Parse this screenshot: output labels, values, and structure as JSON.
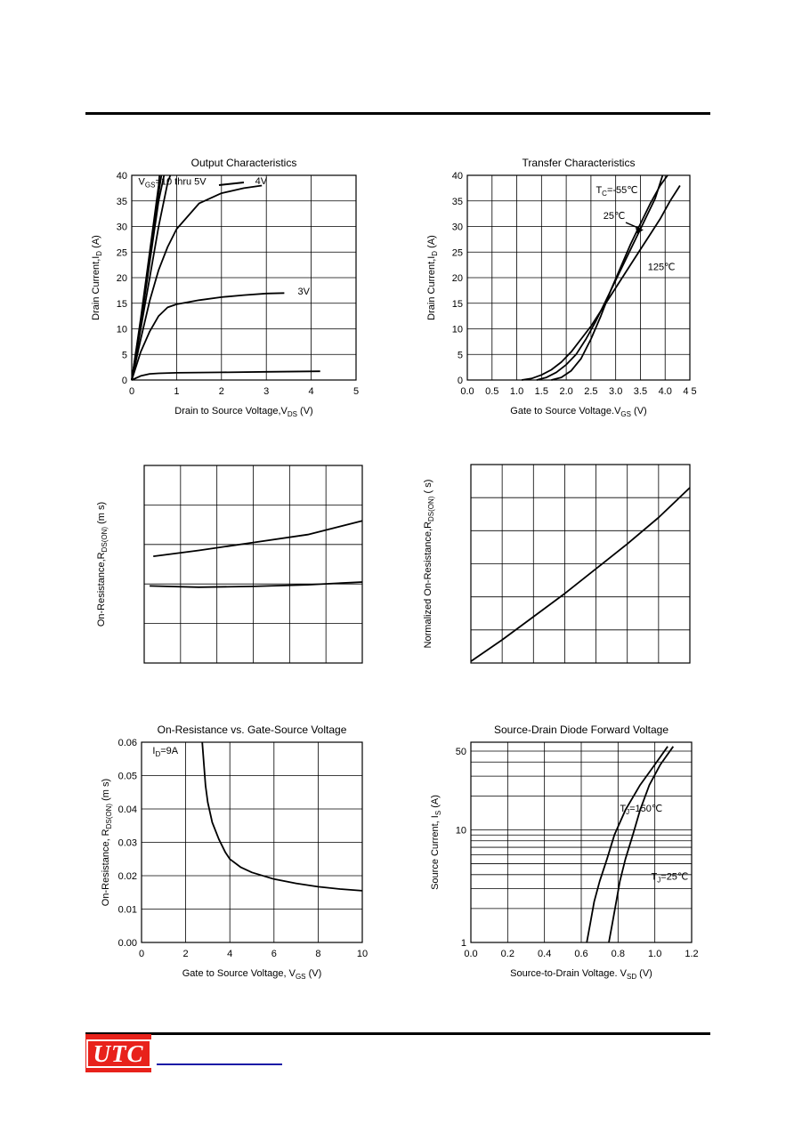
{
  "logo": {
    "text": "UTC"
  },
  "colors": {
    "rule": "#000000",
    "logo_bg": "#e8221b",
    "link": "#1a1aa6"
  },
  "chart_data": [
    {
      "type": "line",
      "title": "Output Characteristics",
      "xlabel": "Drain to Source Voltage,V",
      "xlabel_sub": "DS",
      "xlabel_unit": " (V)",
      "ylabel": "Drain Current,I",
      "ylabel_sub": "D",
      "ylabel_unit": " (A)",
      "xlim": [
        0,
        5
      ],
      "ylim": [
        0,
        40
      ],
      "xticks": [
        0,
        1,
        2,
        3,
        4,
        5
      ],
      "yticks": [
        0,
        5,
        10,
        15,
        20,
        25,
        30,
        35,
        40
      ],
      "grid": true,
      "annotations": [
        {
          "text": "V",
          "sub": "GS",
          "rest": "=10 thru 5V",
          "x": 0.15,
          "y": 38.2
        },
        {
          "text": "4V",
          "x": 2.75,
          "y": 38.3
        },
        {
          "text": "3V",
          "x": 3.7,
          "y": 16.7
        }
      ],
      "series": [
        {
          "x": [
            0,
            0.2,
            0.4,
            0.6,
            0.62
          ],
          "y": [
            0,
            12,
            25,
            38,
            40
          ]
        },
        {
          "x": [
            0,
            0.2,
            0.4,
            0.6,
            0.66
          ],
          "y": [
            0,
            11.5,
            24,
            36.5,
            40
          ]
        },
        {
          "x": [
            0,
            0.2,
            0.4,
            0.6,
            0.72
          ],
          "y": [
            0,
            11,
            23,
            35,
            40
          ]
        },
        {
          "x": [
            0,
            0.2,
            0.4,
            0.6,
            0.8,
            0.86
          ],
          "y": [
            0,
            10,
            20,
            30,
            38.5,
            40
          ]
        },
        {
          "x": [
            0,
            0.2,
            0.4,
            0.6,
            0.8,
            1.0,
            1.5,
            2.0,
            2.5,
            2.9
          ],
          "y": [
            0,
            8,
            15.5,
            21.5,
            26,
            29.5,
            34.5,
            36.5,
            37.5,
            38
          ]
        },
        {
          "x": [
            0,
            0.2,
            0.4,
            0.6,
            0.8,
            1.0,
            1.5,
            2.0,
            2.5,
            3.0,
            3.4
          ],
          "y": [
            0,
            5.5,
            9.5,
            12.5,
            14.2,
            14.8,
            15.6,
            16.2,
            16.6,
            16.9,
            17
          ]
        },
        {
          "x": [
            0,
            0.2,
            0.4,
            0.6,
            1.0,
            2.0,
            3.0,
            4.2
          ],
          "y": [
            0,
            0.8,
            1.2,
            1.3,
            1.4,
            1.5,
            1.6,
            1.7
          ]
        }
      ]
    },
    {
      "type": "line",
      "title": "Transfer Characteristics",
      "xlabel": "Gate to Source Voltage.V",
      "xlabel_sub": "GS",
      "xlabel_unit": " (V)",
      "ylabel": "Drain Current,I",
      "ylabel_sub": "D",
      "ylabel_unit": " (A)",
      "xlim": [
        0,
        4.5
      ],
      "ylim": [
        0,
        40
      ],
      "xticks": [
        "0.0",
        "0.5",
        "1.0",
        "1.5",
        "2.0",
        "2.5",
        "3.0",
        "3.5",
        "4.0",
        "4 5"
      ],
      "yticks": [
        0,
        5,
        10,
        15,
        20,
        25,
        30,
        35,
        40
      ],
      "grid": true,
      "annotations": [
        {
          "text": "T",
          "sub": "C",
          "rest": "=-55℃",
          "x": 2.6,
          "y": 36.5
        },
        {
          "text": "25℃",
          "x": 2.75,
          "y": 31.5
        },
        {
          "text": "125℃",
          "x": 3.65,
          "y": 21.5
        }
      ],
      "series": [
        {
          "name": "T_C=-55℃",
          "x": [
            1.7,
            1.9,
            2.1,
            2.3,
            2.5,
            2.7,
            2.9,
            3.1,
            3.3,
            3.5,
            3.7,
            3.9,
            4.05
          ],
          "y": [
            0,
            0.5,
            1.8,
            4.2,
            8,
            12.5,
            17.5,
            22,
            26.5,
            30.5,
            34.5,
            38,
            40
          ]
        },
        {
          "name": "25℃",
          "x": [
            1.4,
            1.6,
            1.8,
            2.0,
            2.2,
            2.4,
            2.6,
            2.8,
            3.0,
            3.2,
            3.4,
            3.6,
            3.8,
            3.95
          ],
          "y": [
            0,
            0.5,
            1.5,
            3,
            5,
            8,
            11.5,
            15.5,
            19.5,
            23.5,
            27.5,
            31.5,
            35.5,
            40
          ]
        },
        {
          "name": "125℃",
          "x": [
            1.1,
            1.3,
            1.5,
            1.7,
            1.9,
            2.1,
            2.3,
            2.5,
            2.7,
            2.9,
            3.1,
            3.3,
            3.5,
            3.7,
            3.9,
            4.1,
            4.3
          ],
          "y": [
            0,
            0.3,
            1,
            2,
            3.5,
            5.5,
            8,
            10.5,
            13.5,
            16.5,
            19.5,
            22.5,
            25.5,
            28.5,
            31.5,
            35,
            38
          ]
        }
      ]
    },
    {
      "type": "line",
      "title": "",
      "xlabel": "",
      "ylabel": "On-Resistance,R",
      "ylabel_sub": "DS(ON)",
      "ylabel_unit": " (m s)",
      "xlim": [
        0,
        6
      ],
      "ylim": [
        0,
        5
      ],
      "xticks": [],
      "yticks": [],
      "grid": true,
      "series": [
        {
          "x": [
            0.25,
            1.5,
            3,
            4.5,
            6
          ],
          "y": [
            2.7,
            2.85,
            3.05,
            3.25,
            3.6
          ]
        },
        {
          "x": [
            0.15,
            1.5,
            3,
            4.5,
            6
          ],
          "y": [
            1.95,
            1.92,
            1.94,
            1.98,
            2.05
          ]
        }
      ]
    },
    {
      "type": "line",
      "title": "",
      "xlabel": "",
      "ylabel": "Normalized On-Resistance,R",
      "ylabel_sub": "DS(ON)",
      "ylabel_unit": " ( s)",
      "xlim": [
        0,
        7
      ],
      "ylim": [
        0,
        6
      ],
      "xticks": [],
      "yticks": [],
      "grid": true,
      "series": [
        {
          "x": [
            0,
            1,
            2,
            3,
            4,
            5,
            6,
            7
          ],
          "y": [
            0.05,
            0.7,
            1.4,
            2.1,
            2.85,
            3.6,
            4.4,
            5.3
          ]
        }
      ]
    },
    {
      "type": "line",
      "title": "On-Resistance vs. Gate-Source Voltage",
      "xlabel": "Gate to Source Voltage, V",
      "xlabel_sub": "GS",
      "xlabel_unit": " (V)",
      "ylabel": "On-Resistance, R",
      "ylabel_sub": "DS(ON)",
      "ylabel_unit": " (m s)",
      "xlim": [
        0,
        10
      ],
      "ylim": [
        0,
        0.06
      ],
      "xticks": [
        0,
        2,
        4,
        6,
        8,
        10
      ],
      "yticks": [
        "0.00",
        "0.01",
        "0.02",
        "0.03",
        "0.04",
        "0.05",
        "0.06"
      ],
      "grid": true,
      "annotations": [
        {
          "text": "I",
          "sub": "D",
          "rest": "=9A",
          "x": 0.5,
          "y": 0.0565
        }
      ],
      "series": [
        {
          "x": [
            2.75,
            2.9,
            3.0,
            3.2,
            3.5,
            3.8,
            4.0,
            4.5,
            5.0,
            6.0,
            7.0,
            8.0,
            9.0,
            10.0
          ],
          "y": [
            0.06,
            0.047,
            0.042,
            0.036,
            0.031,
            0.027,
            0.025,
            0.0225,
            0.021,
            0.019,
            0.0177,
            0.0167,
            0.016,
            0.0155
          ]
        }
      ]
    },
    {
      "type": "line",
      "title": "Source-Drain Diode Forward Voltage",
      "xlabel": "Source-to-Drain Voltage. V",
      "xlabel_sub": "SD",
      "xlabel_unit": " (V)",
      "ylabel": "Source Current, I",
      "ylabel_sub": "S",
      "ylabel_unit": " (A)",
      "xlim": [
        0,
        1.2
      ],
      "ylim": [
        1,
        60
      ],
      "yscale": "log",
      "xticks": [
        "0.0",
        "0.2",
        "0.4",
        "0.6",
        "0.8",
        "1.0",
        "1.2"
      ],
      "yticks": [
        1,
        10,
        50
      ],
      "grid": true,
      "annotations": [
        {
          "text": "T",
          "sub": "J",
          "rest": "=150℃",
          "x": 0.81,
          "y": 14.5
        },
        {
          "text": "T",
          "sub": "J",
          "rest": "=25℃",
          "x": 0.98,
          "y": 3.6
        }
      ],
      "series": [
        {
          "name": "T_J=150℃",
          "x": [
            0.63,
            0.65,
            0.67,
            0.7,
            0.74,
            0.78,
            0.84,
            0.92,
            1.0,
            1.07
          ],
          "y": [
            1,
            1.5,
            2.3,
            3.5,
            5.5,
            9,
            15,
            25,
            38,
            55
          ]
        },
        {
          "name": "T_J=25℃",
          "x": [
            0.75,
            0.77,
            0.79,
            0.81,
            0.84,
            0.88,
            0.92,
            0.97,
            1.03,
            1.1
          ],
          "y": [
            1,
            1.5,
            2.3,
            3.5,
            5.5,
            9,
            15,
            25,
            38,
            55
          ]
        }
      ]
    }
  ]
}
